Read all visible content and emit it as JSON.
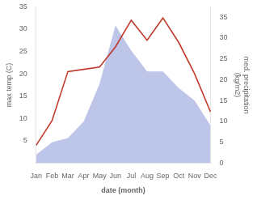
{
  "chart_data": {
    "type": "line",
    "categories": [
      "Jan",
      "Feb",
      "Mar",
      "Apr",
      "May",
      "Jun",
      "Jul",
      "Aug",
      "Sep",
      "Oct",
      "Nov",
      "Dec"
    ],
    "series": [
      {
        "type": "area",
        "axis": "y2",
        "color": "#bdc5e8",
        "values": [
          2.0,
          5.0,
          6.0,
          10.0,
          19.0,
          33.0,
          27.0,
          22.0,
          22.0,
          18.0,
          15.0,
          9.0
        ]
      },
      {
        "type": "line",
        "color": "#c0392b",
        "values": [
          4.0,
          9.5,
          20.5,
          21.0,
          21.5,
          26.0,
          32.0,
          27.5,
          32.5,
          27.0,
          20.0,
          11.5
        ]
      }
    ],
    "xlabel": "date (month)",
    "ylabel": "max temp (C)",
    "y2label": "med. precipitation\n(kg/m2)",
    "ylim": [
      0,
      35
    ],
    "yticks": [
      5,
      10,
      15,
      20,
      25,
      30,
      35
    ],
    "y2lim": [
      0,
      37.5
    ],
    "y2ticks": [
      0,
      5,
      10,
      15,
      20,
      25,
      30,
      35
    ],
    "grid": false
  }
}
